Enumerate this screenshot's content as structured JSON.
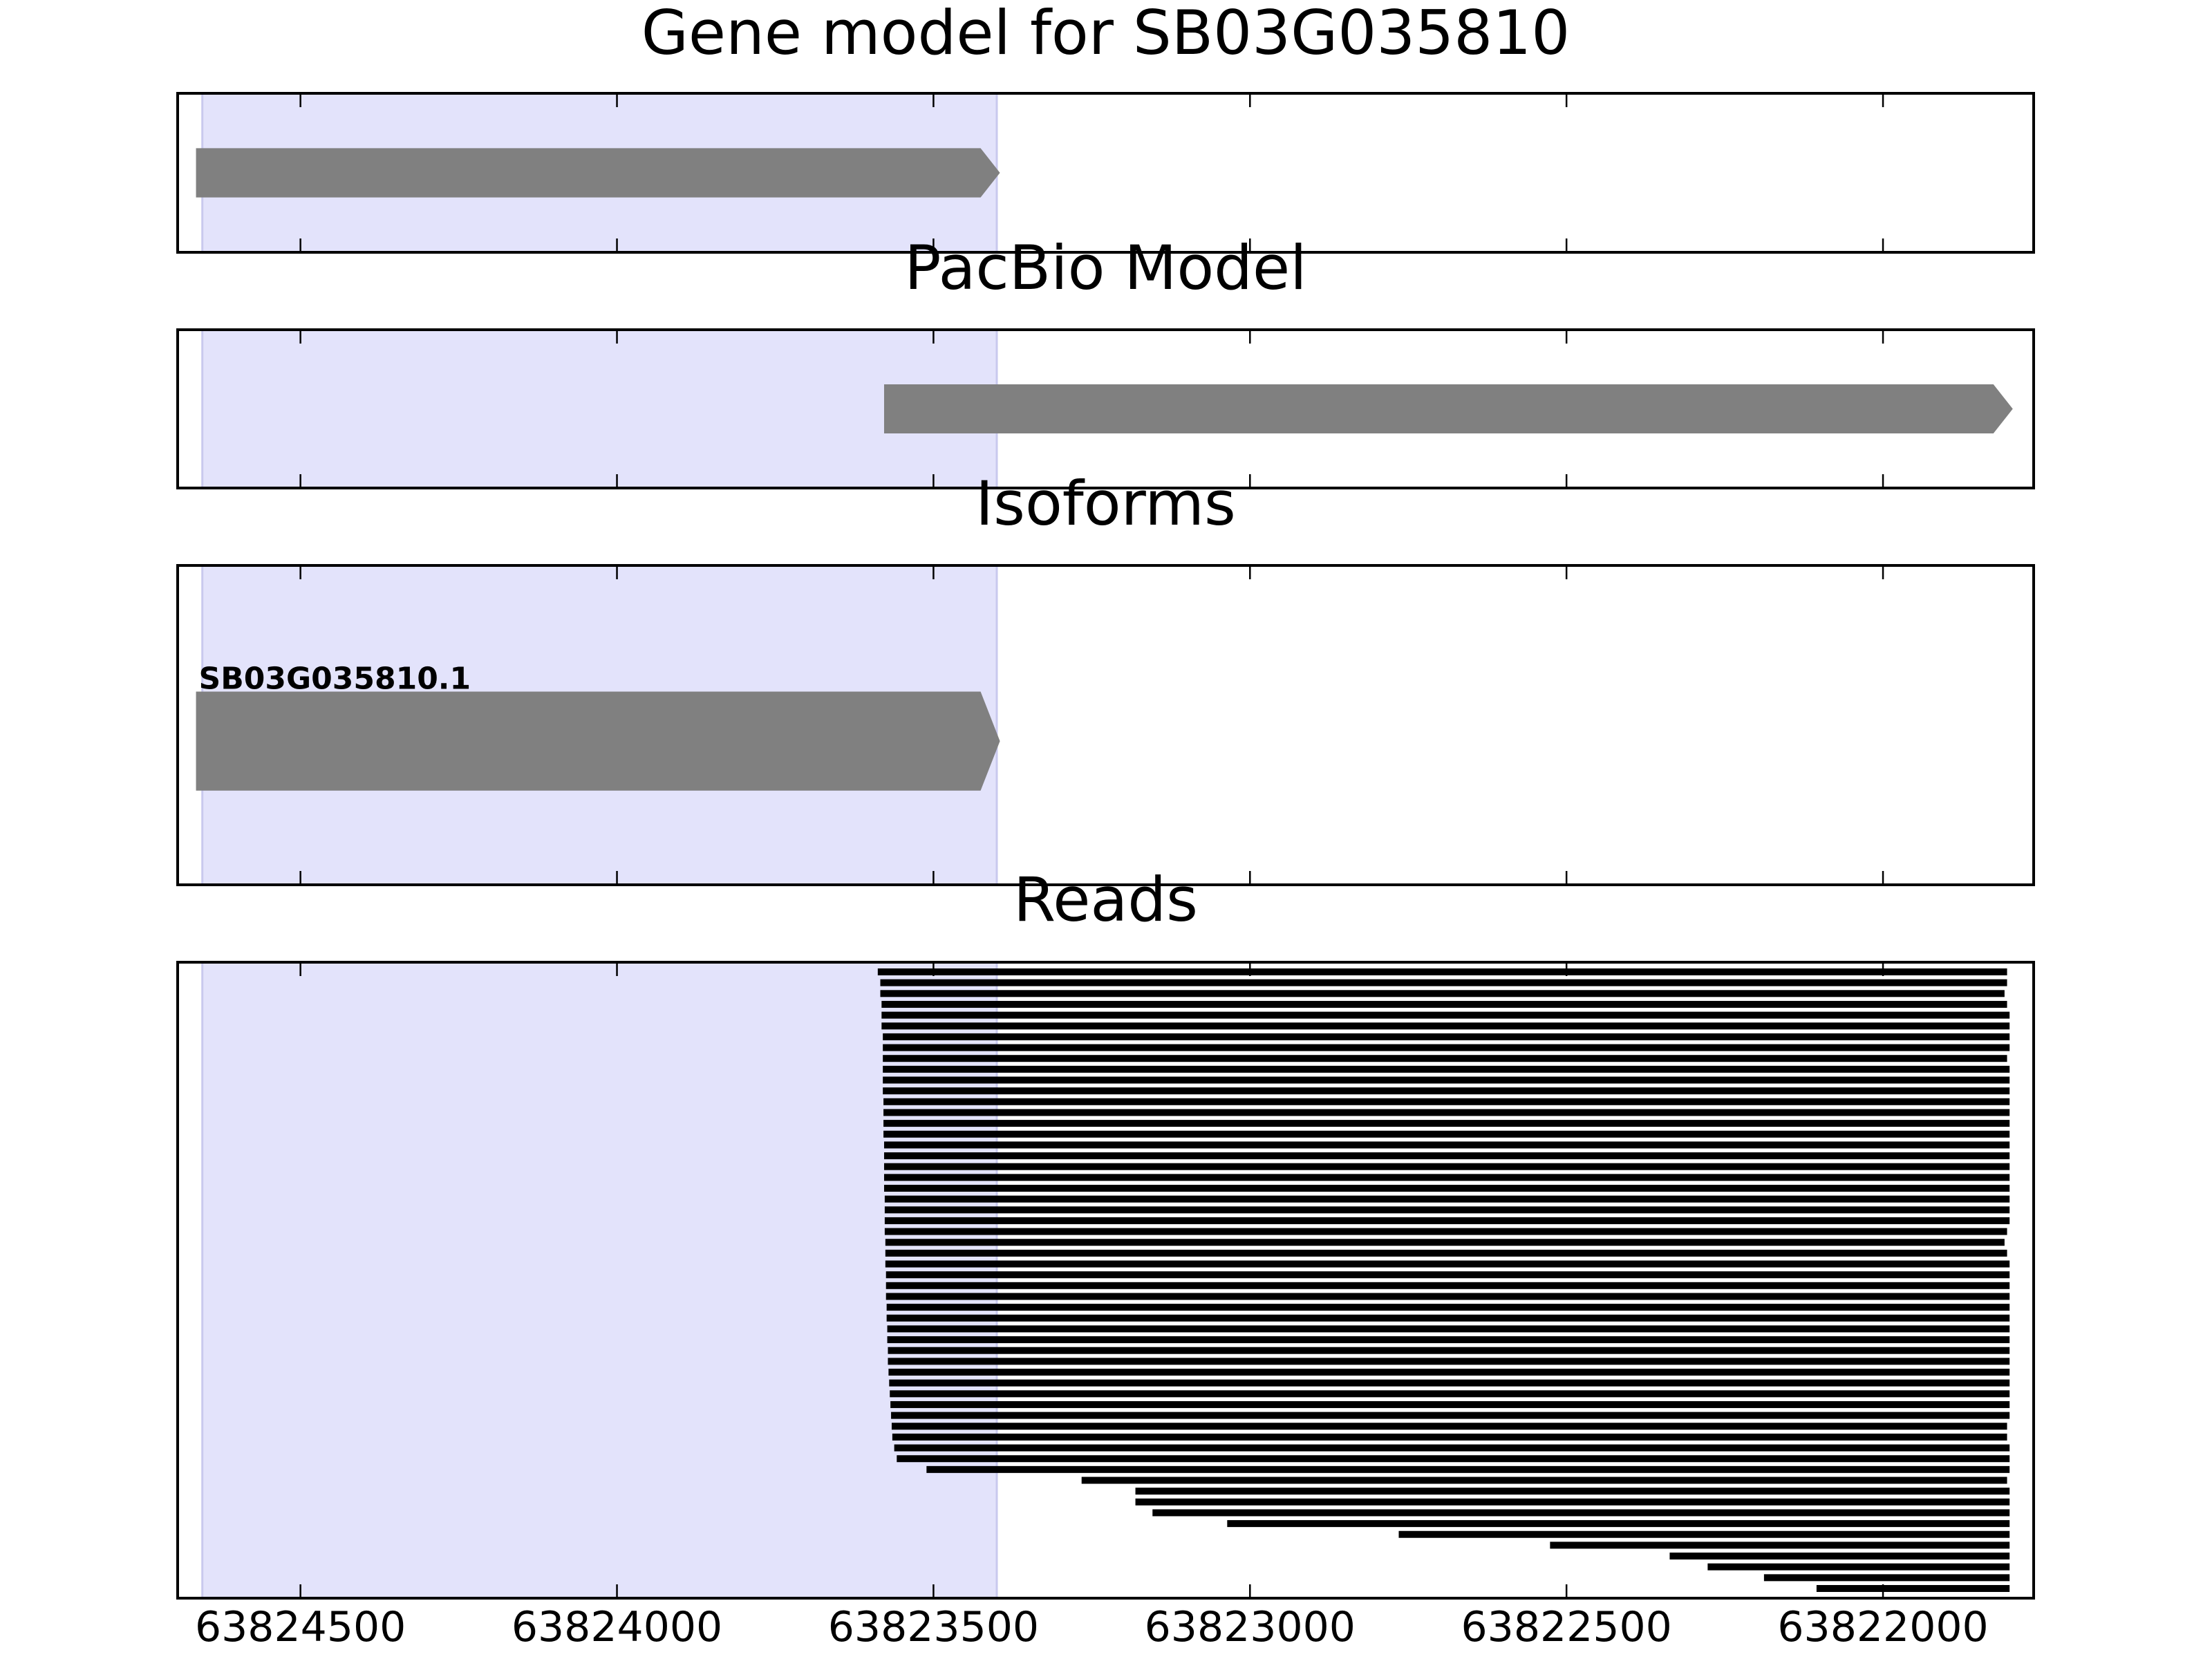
{
  "chart_data": {
    "type": "gene-tracks",
    "xlim": [
      63824694,
      63821762
    ],
    "xticks": [
      63824500,
      63824000,
      63823500,
      63823000,
      63822500,
      63822000
    ],
    "highlight": [
      63824655,
      63823400
    ],
    "highlight_color": "#e3e3fb",
    "panels": [
      {
        "type": "features",
        "title": "Gene model for SB03G035810",
        "features": [
          {
            "start": 63824665,
            "end": 63823395,
            "color": "#808080"
          }
        ]
      },
      {
        "type": "features",
        "title": "PacBio Model",
        "features": [
          {
            "start": 63823578,
            "end": 63821795,
            "color": "#808080"
          }
        ]
      },
      {
        "type": "features",
        "title": "Isoforms",
        "features": [
          {
            "start": 63824665,
            "end": 63823395,
            "color": "#808080",
            "label": "SB03G035810.1"
          }
        ]
      },
      {
        "type": "reads",
        "title": "Reads",
        "color": "#000000",
        "starts": [
          63823588,
          63823584,
          63823584,
          63823582,
          63823582,
          63823582,
          63823580,
          63823580,
          63823580,
          63823580,
          63823580,
          63823580,
          63823579,
          63823579,
          63823579,
          63823579,
          63823578,
          63823578,
          63823578,
          63823578,
          63823578,
          63823577,
          63823577,
          63823577,
          63823577,
          63823576,
          63823576,
          63823576,
          63823575,
          63823575,
          63823575,
          63823574,
          63823574,
          63823573,
          63823573,
          63823572,
          63823572,
          63823571,
          63823570,
          63823569,
          63823568,
          63823567,
          63823566,
          63823565,
          63823562,
          63823558,
          63823511,
          63823266,
          63823181,
          63823181,
          63823154,
          63823036,
          63822765,
          63822526,
          63822337,
          63822277,
          63822188,
          63822105
        ],
        "ends": [
          63821804,
          63821804,
          63821808,
          63821804,
          63821800,
          63821800,
          63821800,
          63821800,
          63821804,
          63821800,
          63821800,
          63821800,
          63821800,
          63821800,
          63821800,
          63821800,
          63821800,
          63821800,
          63821800,
          63821800,
          63821800,
          63821800,
          63821800,
          63821800,
          63821804,
          63821808,
          63821804,
          63821800,
          63821800,
          63821800,
          63821800,
          63821800,
          63821800,
          63821800,
          63821800,
          63821800,
          63821800,
          63821800,
          63821800,
          63821800,
          63821800,
          63821800,
          63821804,
          63821804,
          63821800,
          63821800,
          63821800,
          63821804,
          63821800,
          63821800,
          63821800,
          63821800,
          63821800,
          63821800,
          63821800,
          63821800,
          63821800,
          63821800
        ]
      }
    ]
  }
}
